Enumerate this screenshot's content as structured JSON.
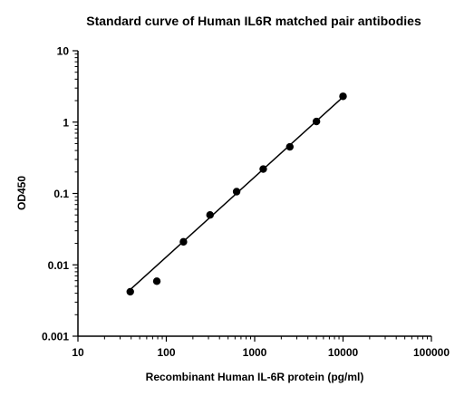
{
  "chart_data": {
    "type": "scatter",
    "title": "Standard curve of Human IL6R matched pair antibodies",
    "xlabel": "Recombinant Human IL-6R protein (pg/ml)",
    "ylabel": "OD450",
    "xscale": "log",
    "yscale": "log",
    "xlim": [
      10,
      100000
    ],
    "ylim": [
      0.001,
      10
    ],
    "xticks": [
      "10",
      "100",
      "1000",
      "10000",
      "100000"
    ],
    "yticks": [
      "0.001",
      "0.01",
      "0.1",
      "1",
      "10"
    ],
    "grid": false,
    "legend": "none",
    "series": [
      {
        "x": [
          39.1,
          78.1,
          156.3,
          312.5,
          625,
          1250,
          2500,
          5000,
          10000
        ],
        "y": [
          0.0042,
          0.0059,
          0.021,
          0.05,
          0.106,
          0.22,
          0.45,
          1.02,
          2.3
        ]
      }
    ],
    "fit": {
      "x": [
        39.1,
        10000
      ],
      "y": [
        0.0045,
        2.25
      ]
    }
  }
}
